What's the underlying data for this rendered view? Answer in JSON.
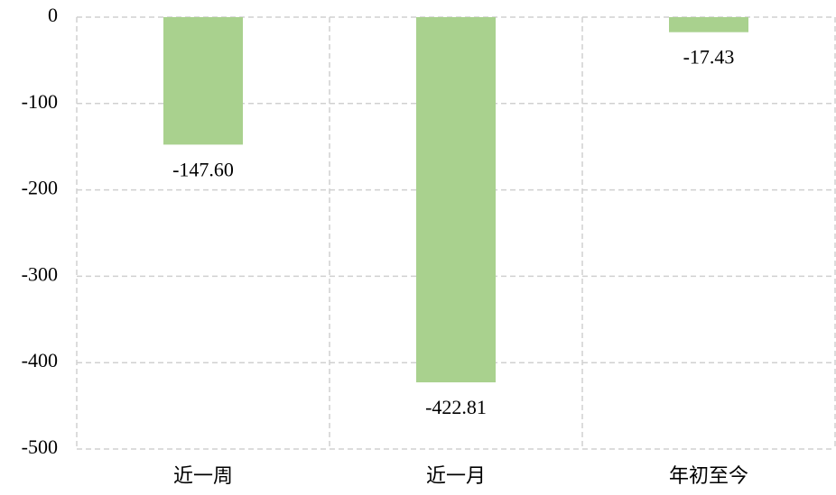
{
  "chart_data": {
    "type": "bar",
    "categories": [
      "近一周",
      "近一月",
      "年初至今"
    ],
    "values": [
      -147.6,
      -422.81,
      -17.43
    ],
    "value_labels": [
      "-147.60",
      "-422.81",
      "-17.43"
    ],
    "color": "#a9d18e",
    "ylim": [
      -500,
      0
    ],
    "yticks": [
      0,
      -100,
      -200,
      -300,
      -400,
      -500
    ],
    "grid": true
  }
}
